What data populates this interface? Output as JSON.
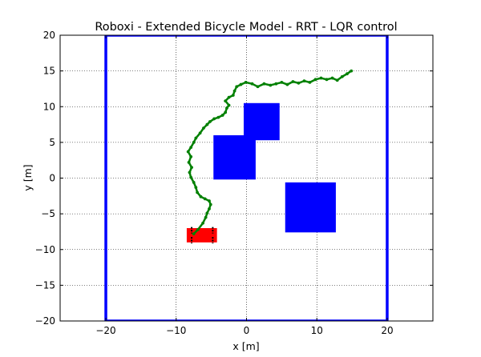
{
  "chart_data": {
    "type": "scatter",
    "title": "Roboxi - Extended Bicycle Model - RRT - LQR control",
    "xlabel": "x [m]",
    "ylabel": "y [m]",
    "xlim": [
      -26.5,
      26.5
    ],
    "ylim": [
      -20,
      20
    ],
    "grid": true,
    "x_ticks": [
      -20,
      -10,
      0,
      10,
      20
    ],
    "x_tick_labels": [
      "−20",
      "−10",
      "0",
      "10",
      "20"
    ],
    "y_ticks": [
      -20,
      -15,
      -10,
      -5,
      0,
      5,
      10,
      15,
      20
    ],
    "y_tick_labels": [
      "−20",
      "−15",
      "−10",
      "−5",
      "0",
      "5",
      "10",
      "15",
      "20"
    ],
    "boundary": {
      "color": "#0000ff",
      "corners": [
        [
          -20,
          -20
        ],
        [
          20,
          -20
        ],
        [
          20,
          20
        ],
        [
          -20,
          20
        ]
      ]
    },
    "obstacles": [
      {
        "color": "#0000ff",
        "x": [
          -4.7,
          1.3
        ],
        "y": [
          -0.2,
          6.0
        ]
      },
      {
        "color": "#0000ff",
        "x": [
          -0.4,
          4.7
        ],
        "y": [
          5.3,
          10.5
        ]
      },
      {
        "color": "#0000ff",
        "x": [
          5.5,
          12.7
        ],
        "y": [
          -7.6,
          -0.6
        ]
      }
    ],
    "vehicle": {
      "color": "#ff0000",
      "x": [
        -8.5,
        -4.2
      ],
      "y": [
        -9.0,
        -7.0
      ],
      "wheels_color": "#000000",
      "wheels": [
        [
          -7.8,
          -7.3
        ],
        [
          -4.8,
          -7.3
        ],
        [
          -7.8,
          -8.7
        ],
        [
          -4.8,
          -8.7
        ]
      ]
    },
    "trajectory": {
      "color": "#008000",
      "points": [
        [
          -7.5,
          -7.8
        ],
        [
          -6.9,
          -7.2
        ],
        [
          -6.2,
          -6.3
        ],
        [
          -5.8,
          -5.5
        ],
        [
          -5.6,
          -4.9
        ],
        [
          -5.3,
          -4.3
        ],
        [
          -5.1,
          -3.7
        ],
        [
          -5.3,
          -3.2
        ],
        [
          -5.9,
          -2.9
        ],
        [
          -6.5,
          -2.6
        ],
        [
          -7.0,
          -2.0
        ],
        [
          -7.2,
          -1.3
        ],
        [
          -7.5,
          -0.6
        ],
        [
          -7.9,
          0.1
        ],
        [
          -8.1,
          0.8
        ],
        [
          -7.8,
          1.5
        ],
        [
          -8.2,
          2.2
        ],
        [
          -7.9,
          3.0
        ],
        [
          -8.3,
          3.7
        ],
        [
          -7.9,
          4.3
        ],
        [
          -7.5,
          5.0
        ],
        [
          -7.2,
          5.6
        ],
        [
          -6.6,
          6.3
        ],
        [
          -6.1,
          7.0
        ],
        [
          -5.6,
          7.5
        ],
        [
          -5.2,
          7.9
        ],
        [
          -4.6,
          8.3
        ],
        [
          -4.0,
          8.5
        ],
        [
          -3.4,
          8.8
        ],
        [
          -3.0,
          9.2
        ],
        [
          -2.8,
          9.8
        ],
        [
          -2.5,
          10.2
        ],
        [
          -3.0,
          10.8
        ],
        [
          -2.5,
          11.3
        ],
        [
          -1.9,
          11.6
        ],
        [
          -1.7,
          12.2
        ],
        [
          -1.4,
          12.8
        ],
        [
          -0.8,
          13.1
        ],
        [
          -0.1,
          13.4
        ],
        [
          0.8,
          13.2
        ],
        [
          1.6,
          12.8
        ],
        [
          2.5,
          13.2
        ],
        [
          3.4,
          13.0
        ],
        [
          4.2,
          13.2
        ],
        [
          5.0,
          13.4
        ],
        [
          5.8,
          13.1
        ],
        [
          6.6,
          13.5
        ],
        [
          7.4,
          13.3
        ],
        [
          8.2,
          13.6
        ],
        [
          9.0,
          13.4
        ],
        [
          9.8,
          13.8
        ],
        [
          10.6,
          14.0
        ],
        [
          11.4,
          13.8
        ],
        [
          12.2,
          14.0
        ],
        [
          12.9,
          13.7
        ],
        [
          13.6,
          14.2
        ],
        [
          14.3,
          14.6
        ],
        [
          14.9,
          15.0
        ]
      ]
    }
  }
}
